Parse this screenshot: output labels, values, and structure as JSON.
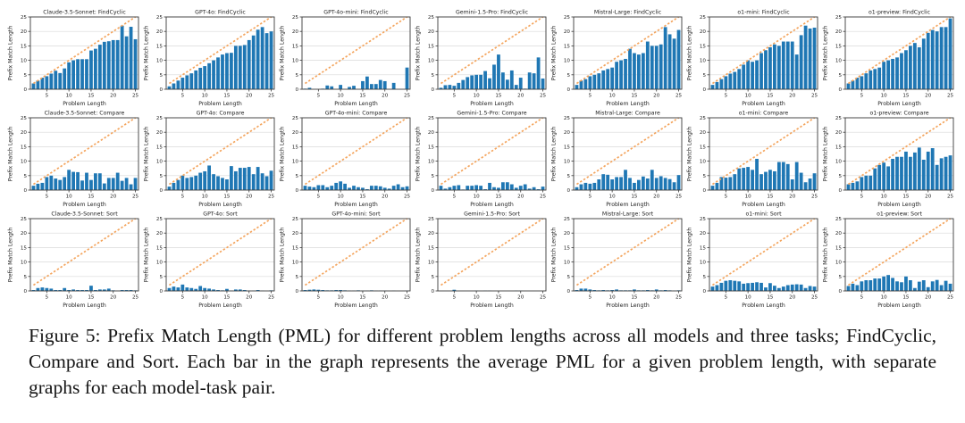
{
  "figure": {
    "caption": "Figure 5: Prefix Match Length (PML) for different problem lengths across all models and three tasks; FindCyclic, Compare and Sort. Each bar in the graph represents the average PML for a given problem length, with separate graphs for each model-task pair.",
    "xlabel": "Problem Length",
    "ylabel": "Prefix Match Length",
    "x_ticks": [
      5,
      10,
      15,
      20,
      25
    ],
    "y_ticks": [
      0,
      5,
      10,
      15,
      20,
      25
    ],
    "xlim": [
      1.3,
      25.7
    ],
    "ylim": [
      0,
      25
    ],
    "x_start": 2,
    "colors": {
      "bar": "#1f77b4",
      "diagonal": "#f4a55e",
      "grid": "#d9d9d9",
      "axis": "#3a3a3a",
      "text": "#222222"
    },
    "models": [
      "Claude-3.5-Sonnet",
      "GPT-4o",
      "GPT-4o-mini",
      "Gemini-1.5-Pro",
      "Mistral-Large",
      "o1-mini",
      "o1-preview"
    ],
    "tasks": [
      "FindCyclic",
      "Compare",
      "Sort"
    ]
  },
  "chart_data": [
    {
      "type": "bar",
      "model": "Claude-3.5-Sonnet",
      "task": "FindCyclic",
      "title": "Claude-3.5-Sonnet: FindCyclic",
      "diagonal": true,
      "values": [
        2,
        3,
        4,
        4.5,
        5.4,
        6.4,
        5.6,
        7.2,
        9.3,
        10,
        10.4,
        10.4,
        10.4,
        13.4,
        14,
        15.4,
        16.4,
        16.6,
        17,
        17,
        22,
        18.3,
        21.6,
        17.3
      ]
    },
    {
      "type": "bar",
      "model": "GPT-4o",
      "task": "FindCyclic",
      "title": "GPT-4o: FindCyclic",
      "diagonal": true,
      "values": [
        1,
        2,
        3,
        4,
        4.8,
        5.5,
        6.5,
        7.4,
        8,
        9,
        10,
        11,
        12,
        12.5,
        12.6,
        15,
        15,
        15.3,
        17,
        18.6,
        20.6,
        21.5,
        19.4,
        20
      ]
    },
    {
      "type": "bar",
      "model": "GPT-4o-mini",
      "task": "FindCyclic",
      "title": "GPT-4o-mini: FindCyclic",
      "diagonal": true,
      "values": [
        0.2,
        0.5,
        0,
        0,
        0.2,
        1.3,
        1,
        0,
        1.5,
        0,
        0.8,
        1.2,
        0,
        2.8,
        4.4,
        1.8,
        1.8,
        3.2,
        2.8,
        0,
        2.2,
        0,
        0,
        7.5
      ]
    },
    {
      "type": "bar",
      "model": "Gemini-1.5-Pro",
      "task": "FindCyclic",
      "title": "Gemini-1.5-Pro: FindCyclic",
      "diagonal": true,
      "values": [
        0.5,
        1.4,
        1.5,
        1.2,
        2.2,
        3.2,
        4.2,
        4.8,
        5,
        5,
        6.3,
        3.8,
        8.5,
        12,
        5.8,
        3.3,
        6.5,
        1.5,
        4,
        0.2,
        5.8,
        5.5,
        11,
        3.7
      ]
    },
    {
      "type": "bar",
      "model": "Mistral-Large",
      "task": "FindCyclic",
      "title": "Mistral-Large: FindCyclic",
      "diagonal": true,
      "values": [
        1.5,
        3,
        3.5,
        4.5,
        5,
        5.5,
        6.5,
        7,
        7.5,
        9.5,
        10,
        10.5,
        14,
        12.5,
        12,
        12.5,
        16.5,
        15,
        15,
        15.5,
        21.5,
        19,
        17.5,
        20.5
      ]
    },
    {
      "type": "bar",
      "model": "o1-mini",
      "task": "FindCyclic",
      "title": "o1-mini: FindCyclic",
      "diagonal": true,
      "values": [
        1.5,
        2.5,
        3.5,
        4.5,
        5.4,
        6,
        7,
        8.5,
        10,
        9.5,
        10,
        12.5,
        13.5,
        14.5,
        15.5,
        15,
        16.5,
        16.5,
        16.5,
        12,
        18.7,
        22,
        21,
        21.3
      ]
    },
    {
      "type": "bar",
      "model": "o1-preview",
      "task": "FindCyclic",
      "title": "o1-preview: FindCyclic",
      "diagonal": true,
      "values": [
        2,
        3,
        4,
        4.5,
        5.5,
        6.5,
        7,
        7.5,
        9.5,
        10,
        10.5,
        11,
        12.5,
        13.5,
        15,
        16,
        14.5,
        17.5,
        19.5,
        20.5,
        20,
        21.5,
        21.5,
        24.5
      ]
    },
    {
      "type": "bar",
      "model": "Claude-3.5-Sonnet",
      "task": "Compare",
      "title": "Claude-3.5-Sonnet: Compare",
      "diagonal": true,
      "values": [
        1.5,
        2.2,
        2.5,
        4.5,
        5,
        4,
        3.5,
        4.5,
        7,
        6.3,
        6.2,
        3.3,
        6,
        3.5,
        5.8,
        5.8,
        2.3,
        4.2,
        4.2,
        6,
        3.2,
        4.2,
        2,
        4.2
      ]
    },
    {
      "type": "bar",
      "model": "GPT-4o",
      "task": "Compare",
      "title": "GPT-4o: Compare",
      "diagonal": true,
      "values": [
        1.2,
        2.5,
        3.5,
        5,
        4.2,
        4.5,
        5,
        6,
        6.5,
        8.5,
        5.5,
        4.8,
        4.2,
        3.7,
        8.3,
        6.5,
        7.7,
        7.7,
        8,
        5.5,
        8,
        5.8,
        4.8,
        6.7
      ]
    },
    {
      "type": "bar",
      "model": "GPT-4o-mini",
      "task": "Compare",
      "title": "GPT-4o-mini: Compare",
      "diagonal": true,
      "values": [
        1.5,
        1.2,
        1,
        1.7,
        1.7,
        1,
        1.5,
        2.5,
        3,
        2.2,
        0.8,
        1.5,
        1,
        0.8,
        0.3,
        1.5,
        1.5,
        1.3,
        0.8,
        0.5,
        1.5,
        2,
        1,
        1.3
      ]
    },
    {
      "type": "bar",
      "model": "Gemini-1.5-Pro",
      "task": "Compare",
      "title": "Gemini-1.5-Pro: Compare",
      "diagonal": true,
      "values": [
        1.5,
        0.5,
        1,
        1.5,
        1.7,
        0.2,
        1.5,
        1.5,
        1.7,
        1.5,
        0.3,
        2.5,
        1,
        0.8,
        2.7,
        2.7,
        2,
        0.8,
        1.5,
        2,
        0.5,
        1,
        0.3,
        1.2
      ]
    },
    {
      "type": "bar",
      "model": "Mistral-Large",
      "task": "Compare",
      "title": "Mistral-Large: Compare",
      "diagonal": true,
      "values": [
        1,
        2,
        2.5,
        2.2,
        2.5,
        3.7,
        5.5,
        5.3,
        3.7,
        4.5,
        4.5,
        7,
        4.2,
        2.5,
        3.5,
        4.7,
        4,
        7,
        4.2,
        4.8,
        4.2,
        3.8,
        2.7,
        5.2
      ]
    },
    {
      "type": "bar",
      "model": "o1-mini",
      "task": "Compare",
      "title": "o1-mini: Compare",
      "diagonal": true,
      "values": [
        1.5,
        2.5,
        4.5,
        4.3,
        4.5,
        5.5,
        7.5,
        7.7,
        8,
        7,
        10.8,
        5.5,
        6.3,
        7,
        6.5,
        9.7,
        9.7,
        9,
        3.7,
        9.7,
        6,
        2.7,
        4,
        5.8
      ]
    },
    {
      "type": "bar",
      "model": "o1-preview",
      "task": "Compare",
      "title": "o1-preview: Compare",
      "diagonal": true,
      "values": [
        2,
        2.5,
        3,
        4.5,
        5,
        5,
        7.5,
        8.7,
        9.5,
        8.2,
        10.8,
        11.5,
        11.5,
        13.3,
        11.5,
        13,
        14.7,
        10.5,
        13.3,
        14.5,
        8.7,
        11,
        11.5,
        12
      ]
    },
    {
      "type": "bar",
      "model": "Claude-3.5-Sonnet",
      "task": "Sort",
      "title": "Claude-3.5-Sonnet: Sort",
      "diagonal": true,
      "values": [
        0.3,
        1,
        1.2,
        1,
        0.8,
        0.3,
        0.3,
        1,
        0.3,
        0.5,
        0.3,
        0.3,
        0.3,
        1.8,
        0.3,
        0.5,
        0.5,
        0.8,
        0.2,
        0.1,
        0.3,
        0.3,
        0.3,
        0.2
      ]
    },
    {
      "type": "bar",
      "model": "GPT-4o",
      "task": "Sort",
      "title": "GPT-4o: Sort",
      "diagonal": true,
      "values": [
        1,
        1.5,
        1.2,
        2.2,
        1.2,
        1,
        0.7,
        1.7,
        1,
        0.8,
        0.5,
        0.3,
        0.2,
        0.7,
        0.1,
        0.5,
        0.5,
        0.3,
        0.1,
        0.1,
        0.3,
        0.1,
        0,
        0.2
      ]
    },
    {
      "type": "bar",
      "model": "GPT-4o-mini",
      "task": "Sort",
      "title": "GPT-4o-mini: Sort",
      "diagonal": true,
      "values": [
        0.3,
        0.4,
        0.5,
        0.4,
        0.3,
        0.2,
        0.2,
        0.3,
        0.3,
        0.2,
        0.1,
        0.1,
        0.2,
        0.1,
        0.1,
        0.2,
        0.1,
        0.1,
        0.1,
        0,
        0.1,
        0,
        0,
        0.1
      ]
    },
    {
      "type": "bar",
      "model": "Gemini-1.5-Pro",
      "task": "Sort",
      "title": "Gemini-1.5-Pro: Sort",
      "diagonal": true,
      "values": [
        0,
        0,
        0,
        0.4,
        0,
        0,
        0,
        0,
        0.1,
        0,
        0.1,
        0.1,
        0,
        0,
        0,
        0,
        0,
        0.1,
        0.1,
        0,
        0,
        0,
        0,
        0
      ]
    },
    {
      "type": "bar",
      "model": "Mistral-Large",
      "task": "Sort",
      "title": "Mistral-Large: Sort",
      "diagonal": true,
      "values": [
        0.3,
        0.8,
        0.8,
        0.5,
        0.3,
        0.2,
        0.3,
        0.2,
        0.3,
        0.5,
        0.2,
        0.2,
        0.2,
        0.5,
        0.2,
        0.2,
        0.3,
        0.2,
        0.5,
        0.2,
        0.3,
        0.2,
        0.1,
        0.2
      ]
    },
    {
      "type": "bar",
      "model": "o1-mini",
      "task": "Sort",
      "title": "o1-mini: Sort",
      "diagonal": true,
      "values": [
        1.5,
        2,
        2.8,
        3.5,
        3.7,
        3.5,
        3.3,
        2.5,
        2.7,
        2.8,
        3,
        2.8,
        1.2,
        2.7,
        1.8,
        1,
        1.5,
        2,
        2.2,
        2.3,
        2.2,
        1,
        1.7,
        1.5
      ]
    },
    {
      "type": "bar",
      "model": "o1-preview",
      "task": "Sort",
      "title": "o1-preview: Sort",
      "diagonal": true,
      "values": [
        1.7,
        2.5,
        2,
        3.3,
        3.7,
        3.7,
        4.3,
        4.3,
        5,
        5.5,
        4.5,
        3.3,
        3,
        5,
        3.7,
        1,
        3.2,
        3.7,
        1.3,
        3.3,
        3.8,
        2,
        3.5,
        2.5
      ]
    }
  ]
}
